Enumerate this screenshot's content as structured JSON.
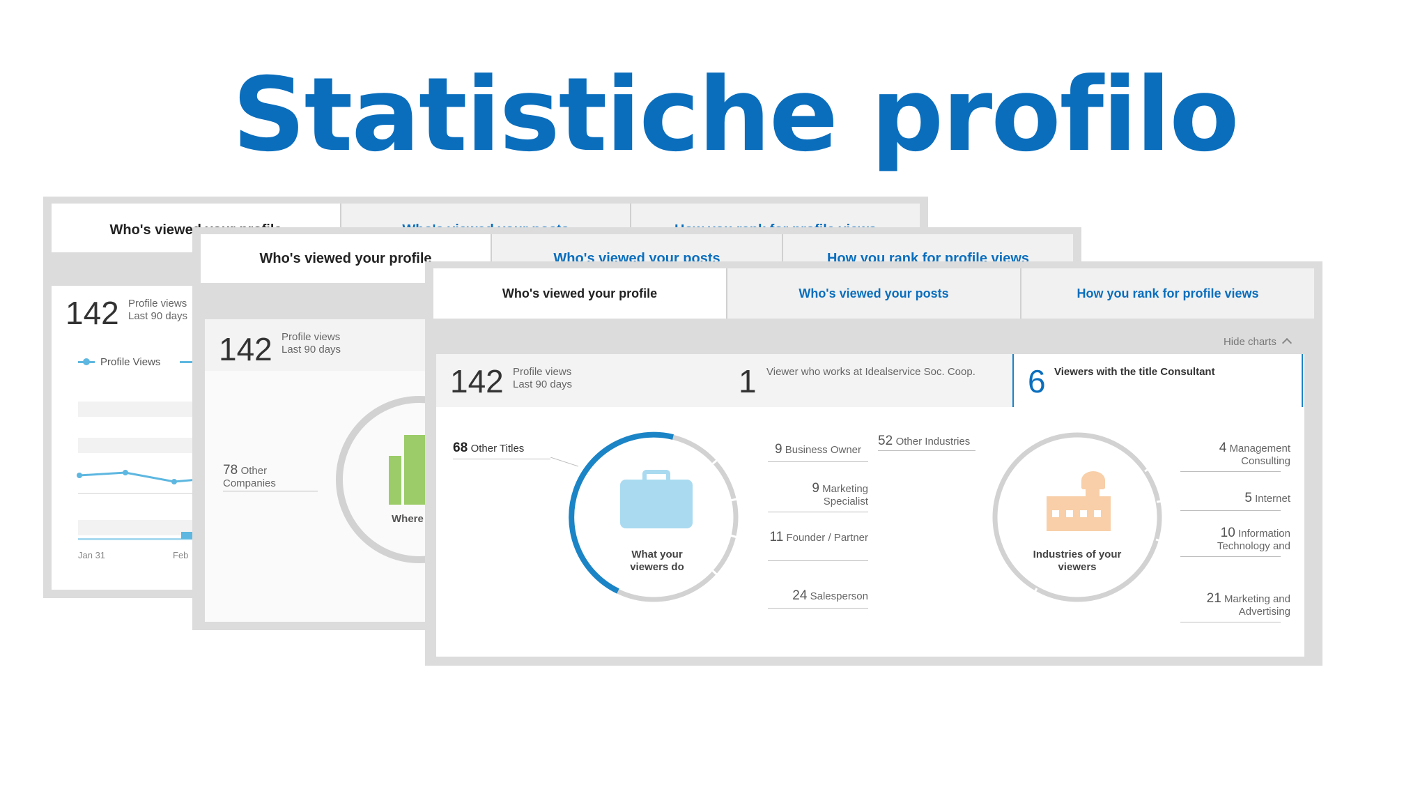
{
  "slide_title": "Statistiche profilo",
  "tabs": {
    "profile": "Who's viewed your profile",
    "posts": "Who's viewed your posts",
    "rank": "How you rank for profile views"
  },
  "w1": {
    "views": "142",
    "views_label": "Profile views",
    "views_period": "Last 90 days",
    "legend": "Profile Views",
    "x_ticks": [
      "Jan 31",
      "Feb"
    ]
  },
  "w2": {
    "views": "142",
    "views_label": "Profile views",
    "views_period": "Last 90 days",
    "other_companies_num": "78",
    "other_companies_label": "Other Companies",
    "center_label": "Where viewer"
  },
  "w3": {
    "hide_charts": "Hide charts",
    "views": "142",
    "views_label": "Profile views",
    "views_period": "Last 90 days",
    "company_num": "1",
    "company_label": "Viewer who works at Idealservice Soc. Coop.",
    "title_num": "6",
    "title_label": "Viewers with the title Consultant",
    "titles": {
      "other_num": "68",
      "other_label": "Other Titles",
      "center": "What your viewers do",
      "items": [
        {
          "num": "9",
          "label": "Business Owner"
        },
        {
          "num": "9",
          "label": "Marketing Specialist"
        },
        {
          "num": "11",
          "label": "Founder / Partner"
        },
        {
          "num": "24",
          "label": "Salesperson"
        }
      ]
    },
    "industries": {
      "other_num": "52",
      "other_label": "Other Industries",
      "center": "Industries of your viewers",
      "items": [
        {
          "num": "4",
          "label": "Management Consulting"
        },
        {
          "num": "5",
          "label": "Internet"
        },
        {
          "num": "10",
          "label": "Information Technology and"
        },
        {
          "num": "21",
          "label": "Marketing and Advertising"
        }
      ]
    }
  },
  "colors": {
    "accent": "#0a6ebd",
    "ring_blue": "#1a84c6",
    "ring_gray": "#d2d2d2",
    "briefcase": "#a9daf0",
    "factory": "#f8cfa8",
    "building": "#9ccc6a"
  }
}
